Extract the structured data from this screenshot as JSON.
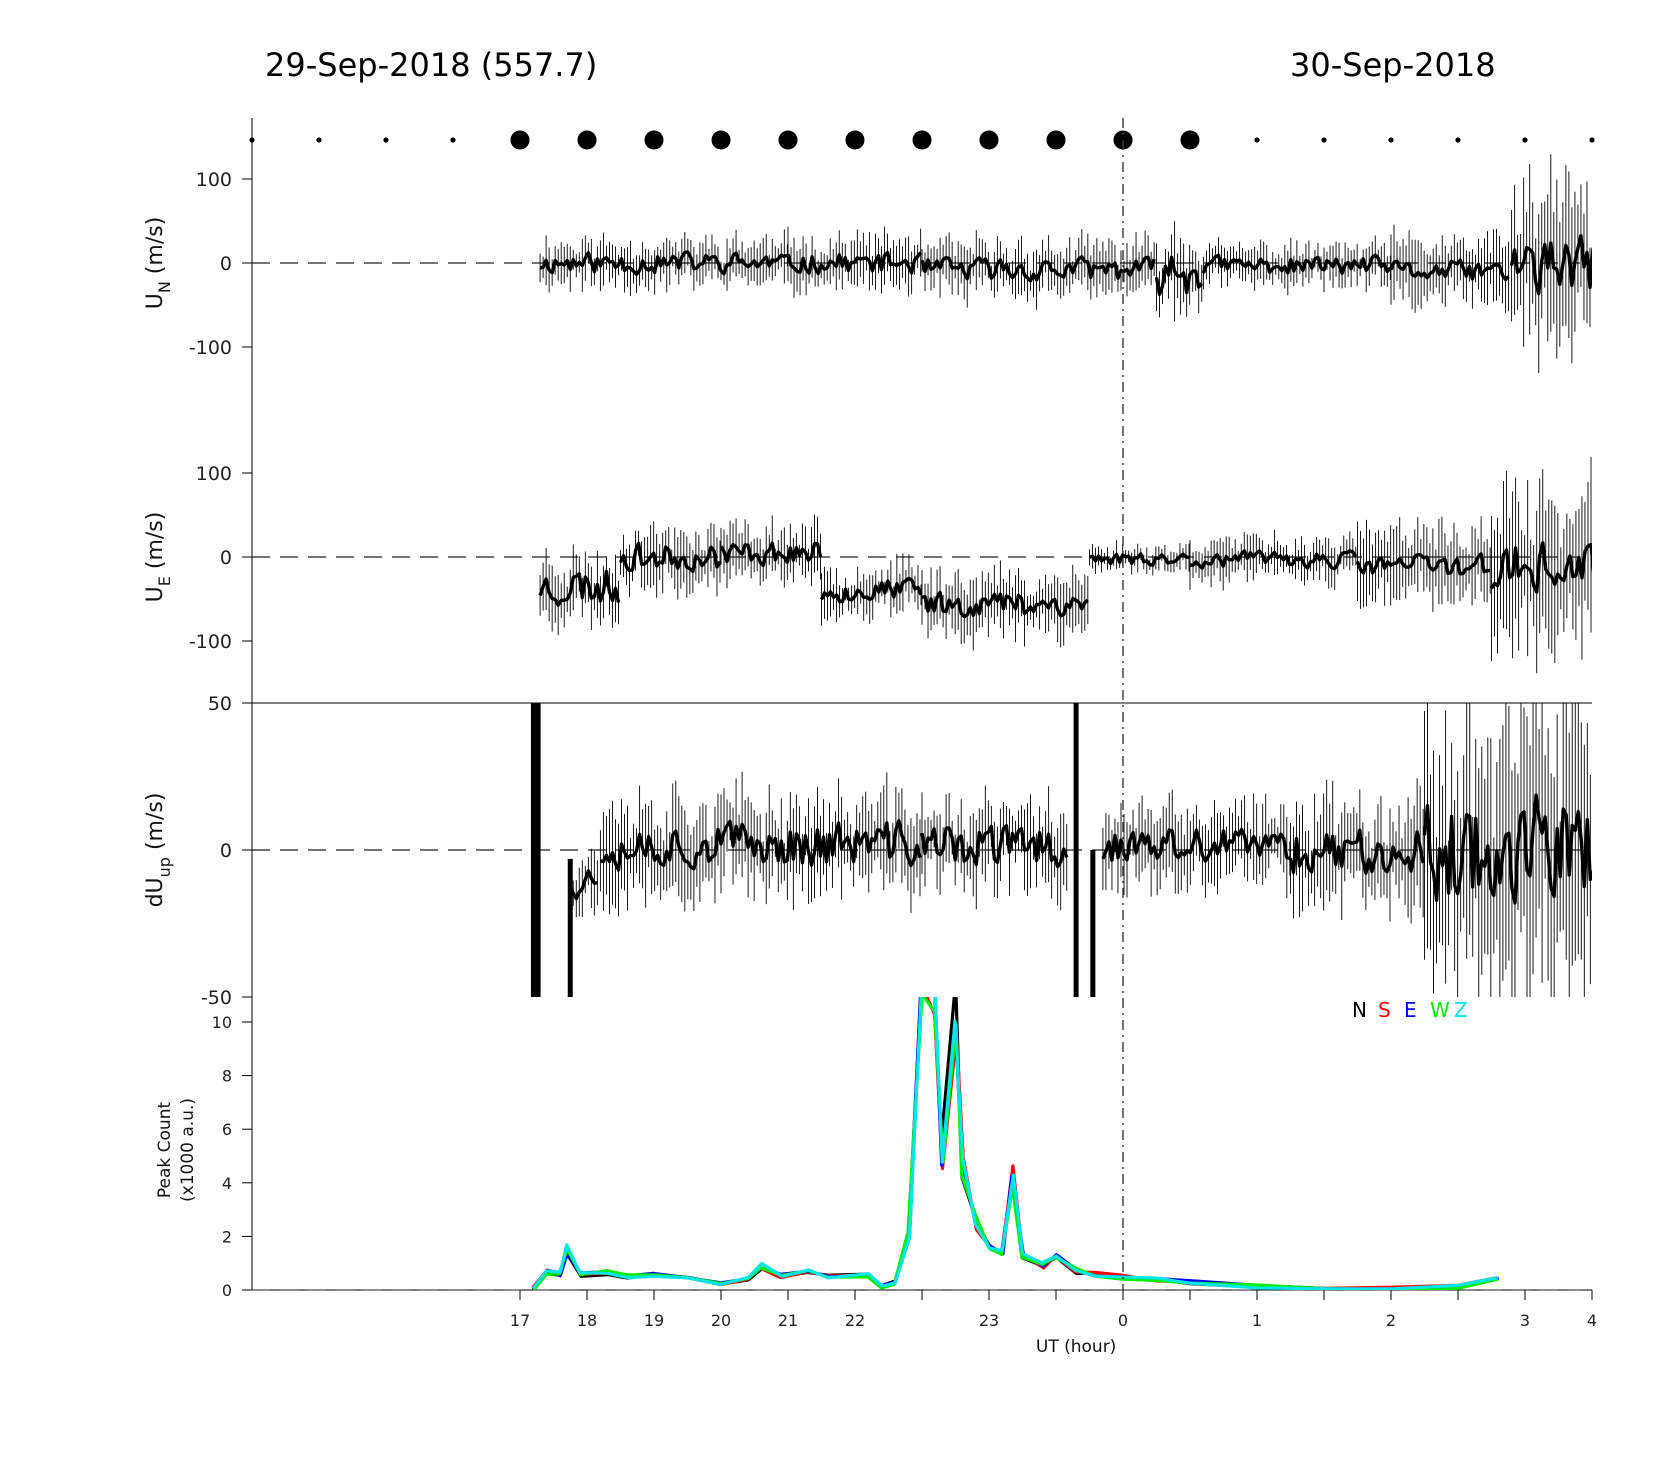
{
  "header": {
    "left_title": "29-Sep-2018 (557.7)",
    "right_title": "30-Sep-2018"
  },
  "chart_data": [
    {
      "type": "scatter",
      "name": "moon-phase-markers",
      "x_hours": [
        16,
        17,
        18,
        19,
        20,
        21,
        22,
        23,
        24,
        25,
        26,
        27,
        28,
        29,
        30,
        31,
        32,
        33,
        34,
        35,
        36
      ],
      "size": [
        "small",
        "small",
        "small",
        "small",
        "large",
        "large",
        "large",
        "large",
        "large",
        "large",
        "large",
        "large",
        "large",
        "large",
        "large",
        "small",
        "small",
        "small",
        "small",
        "small",
        "small"
      ]
    },
    {
      "type": "line",
      "ylabel": "U",
      "ylabel_sub": "N",
      "ylabel_unit": " (m/s)",
      "ylim": [
        -175,
        175
      ],
      "yticks": [
        -100,
        0,
        100
      ],
      "zero_line": "dashed",
      "series_seed": 11,
      "segments": [
        {
          "from": 20.3,
          "to": 24.0,
          "level": 0,
          "noise": 8,
          "err": 22
        },
        {
          "from": 24.0,
          "to": 26.0,
          "level": 0,
          "noise": 8,
          "err": 24
        },
        {
          "from": 26.0,
          "to": 29.5,
          "level": -8,
          "noise": 9,
          "err": 24
        },
        {
          "from": 29.5,
          "to": 30.2,
          "level": -10,
          "noise": 18,
          "err": 40
        },
        {
          "from": 30.2,
          "to": 33.0,
          "level": -3,
          "noise": 7,
          "err": 18
        },
        {
          "from": 33.0,
          "to": 34.8,
          "level": -10,
          "noise": 8,
          "err": 30
        },
        {
          "from": 34.8,
          "to": 36.6,
          "level": -5,
          "noise": 22,
          "err": 75
        }
      ]
    },
    {
      "type": "line",
      "ylabel": "U",
      "ylabel_sub": "E",
      "ylabel_unit": " (m/s)",
      "ylim": [
        -175,
        175
      ],
      "yticks": [
        -100,
        0,
        100
      ],
      "zero_line": "dashed",
      "series_seed": 23,
      "segments": [
        {
          "from": 20.3,
          "to": 21.5,
          "level": -35,
          "noise": 15,
          "err": 28
        },
        {
          "from": 21.5,
          "to": 23.0,
          "level": 0,
          "noise": 10,
          "err": 26
        },
        {
          "from": 23.0,
          "to": 24.5,
          "level": 5,
          "noise": 9,
          "err": 24
        },
        {
          "from": 24.5,
          "to": 26.0,
          "level": -40,
          "noise": 9,
          "err": 24
        },
        {
          "from": 26.0,
          "to": 28.5,
          "level": -55,
          "noise": 10,
          "err": 28
        },
        {
          "from": 28.5,
          "to": 30.0,
          "level": -2,
          "noise": 5,
          "err": 12
        },
        {
          "from": 30.0,
          "to": 32.5,
          "level": -3,
          "noise": 6,
          "err": 20
        },
        {
          "from": 32.5,
          "to": 34.5,
          "level": -10,
          "noise": 9,
          "err": 35
        },
        {
          "from": 34.5,
          "to": 36.6,
          "level": -15,
          "noise": 20,
          "err": 70
        }
      ]
    },
    {
      "type": "line",
      "ylabel": "dU",
      "ylabel_sub": "up",
      "ylabel_unit": " (m/s)",
      "ylim": [
        -50,
        50
      ],
      "yticks": [
        -50,
        0,
        50
      ],
      "zero_line": "dashed",
      "series_seed": 37,
      "spikes": [
        {
          "x": 20.2,
          "from": -50,
          "to": 50
        },
        {
          "x": 20.27,
          "from": -50,
          "to": 50
        },
        {
          "x": 20.75,
          "from": -50,
          "to": -3
        },
        {
          "x": 28.3,
          "from": -50,
          "to": 50
        },
        {
          "x": 28.55,
          "from": -50,
          "to": 0
        }
      ],
      "segments": [
        {
          "from": 20.75,
          "to": 21.2,
          "level": -10,
          "noise": 4,
          "err": 8
        },
        {
          "from": 21.2,
          "to": 26.0,
          "level": 2,
          "noise": 5,
          "err": 12
        },
        {
          "from": 26.0,
          "to": 28.2,
          "level": 1,
          "noise": 5,
          "err": 11
        },
        {
          "from": 28.7,
          "to": 31.5,
          "level": 1,
          "noise": 4,
          "err": 10
        },
        {
          "from": 31.5,
          "to": 33.5,
          "level": 0,
          "noise": 5,
          "err": 14
        },
        {
          "from": 33.5,
          "to": 36.6,
          "level": 0,
          "noise": 12,
          "err": 35
        }
      ]
    },
    {
      "type": "line",
      "ylabel": "Peak Count",
      "ylabel_line2": "(x1000 a.u.)",
      "xlabel": "UT (hour)",
      "ylim": [
        0,
        11
      ],
      "yticks": [
        0,
        2,
        4,
        6,
        8,
        10
      ],
      "xticks": [
        {
          "x": 20,
          "label": "17"
        },
        {
          "x": 21,
          "label": "18"
        },
        {
          "x": 22,
          "label": "19"
        },
        {
          "x": 23,
          "label": "20"
        },
        {
          "x": 24,
          "label": "21"
        },
        {
          "x": 25,
          "label": "22"
        },
        {
          "x": 26,
          "label": ""
        },
        {
          "x": 27,
          "label": "23"
        },
        {
          "x": 28,
          "label": ""
        },
        {
          "x": 29,
          "label": "0"
        },
        {
          "x": 30,
          "label": ""
        },
        {
          "x": 31,
          "label": "1"
        },
        {
          "x": 32,
          "label": ""
        },
        {
          "x": 33,
          "label": "2"
        },
        {
          "x": 34,
          "label": ""
        },
        {
          "x": 35,
          "label": "3"
        },
        {
          "x": 36,
          "label": "4"
        }
      ],
      "legend": [
        {
          "name": "N",
          "color": "#000000"
        },
        {
          "name": "S",
          "color": "#ff0000"
        },
        {
          "name": "E",
          "color": "#0000ff"
        },
        {
          "name": "W",
          "color": "#00ee00"
        },
        {
          "name": "Z",
          "color": "#00e5e5"
        }
      ],
      "legend_position": "top-right",
      "series_points": [
        [
          20.2,
          0
        ],
        [
          20.4,
          0.7
        ],
        [
          20.6,
          0.6
        ],
        [
          20.7,
          1.5
        ],
        [
          20.9,
          0.6
        ],
        [
          21.3,
          0.7
        ],
        [
          21.6,
          0.5
        ],
        [
          22.0,
          0.55
        ],
        [
          22.5,
          0.45
        ],
        [
          23.0,
          0.25
        ],
        [
          23.4,
          0.4
        ],
        [
          23.6,
          0.85
        ],
        [
          23.9,
          0.55
        ],
        [
          24.3,
          0.7
        ],
        [
          24.6,
          0.55
        ],
        [
          25.2,
          0.6
        ],
        [
          25.4,
          0.1
        ],
        [
          25.6,
          0.3
        ],
        [
          25.8,
          2.0
        ],
        [
          26.0,
          10.5
        ],
        [
          26.2,
          10.5
        ],
        [
          26.3,
          5.0
        ],
        [
          26.5,
          10.5
        ],
        [
          26.6,
          4.5
        ],
        [
          26.8,
          2.5
        ],
        [
          27.0,
          1.6
        ],
        [
          27.2,
          1.3
        ],
        [
          27.35,
          4.2
        ],
        [
          27.5,
          1.3
        ],
        [
          27.8,
          0.9
        ],
        [
          28.0,
          1.2
        ],
        [
          28.3,
          0.7
        ],
        [
          28.6,
          0.6
        ],
        [
          29.0,
          0.5
        ],
        [
          29.5,
          0.4
        ],
        [
          30.0,
          0.3
        ],
        [
          31.0,
          0.15
        ],
        [
          32.0,
          0.08
        ],
        [
          33.0,
          0.05
        ],
        [
          34.0,
          0.1
        ],
        [
          34.6,
          0.4
        ]
      ]
    }
  ]
}
